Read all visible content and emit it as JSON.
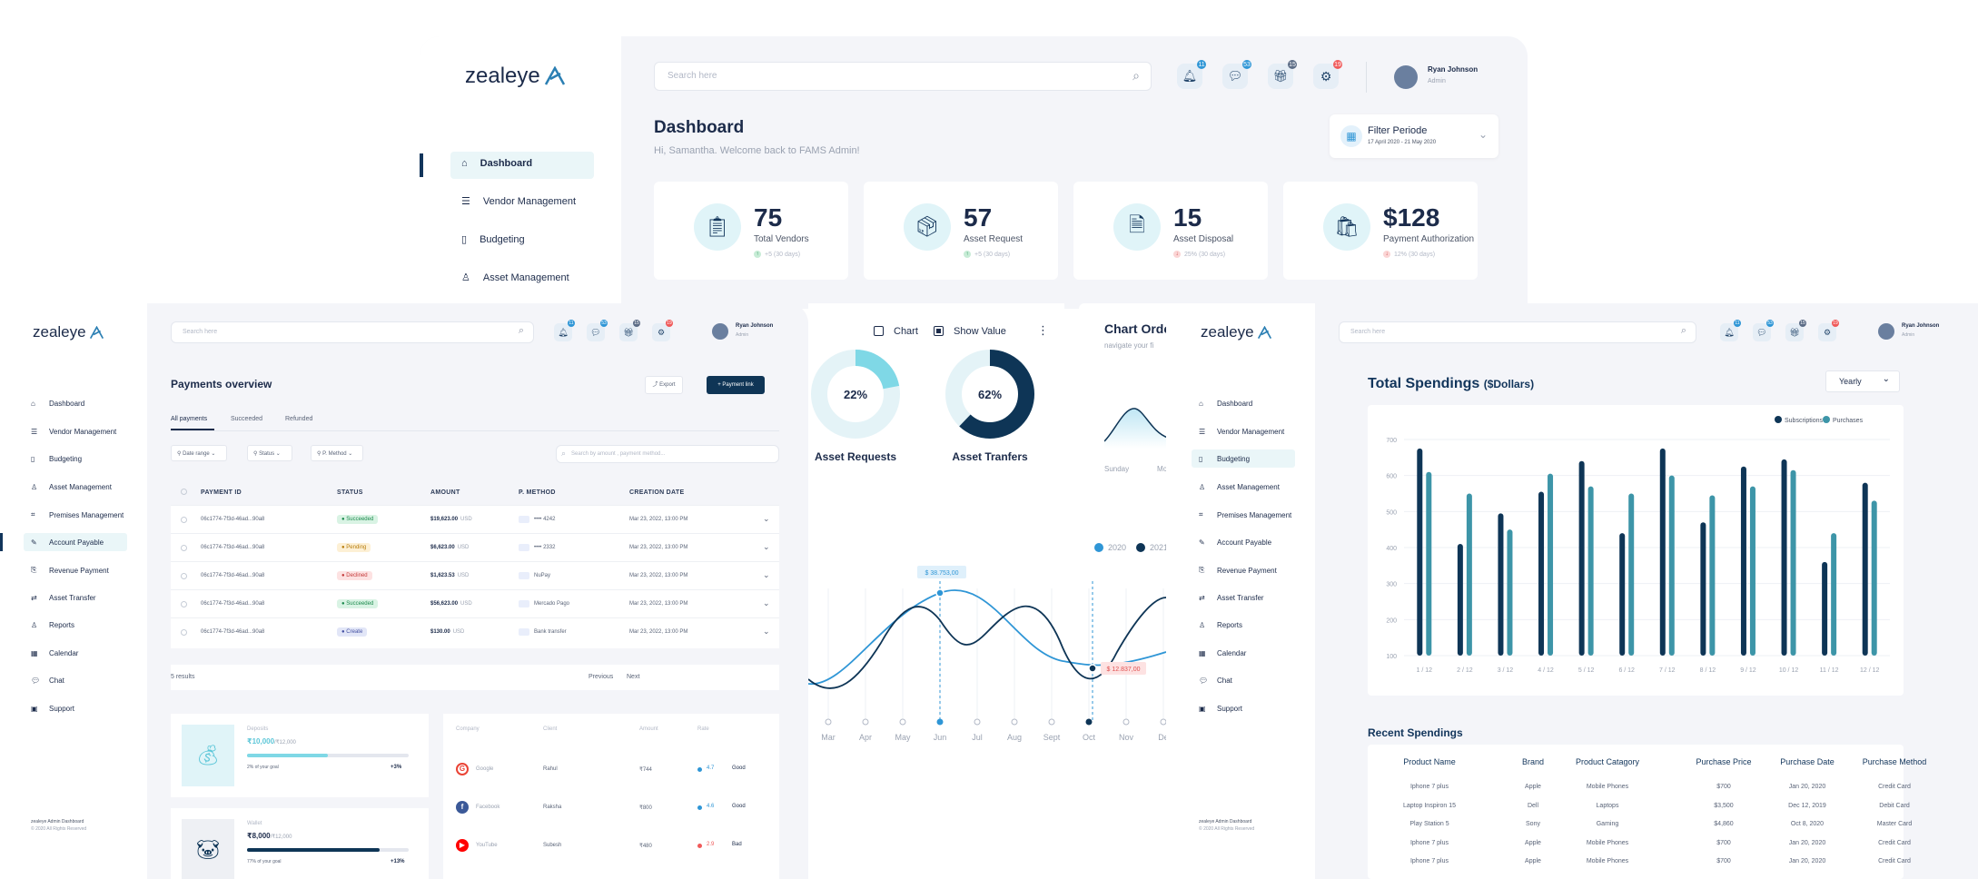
{
  "brand": "zealeye",
  "top": {
    "search_placeholder": "Search here",
    "badges": [
      "11",
      "53",
      "15",
      "19"
    ],
    "user": {
      "name": "Ryan Johnson",
      "role": "Admin"
    },
    "title": "Dashboard",
    "subtitle": "Hi, Samantha. Welcome back  to FAMS Admin!",
    "filter": {
      "label": "Filter Periode",
      "range": "17 April 2020 - 21 May 2020"
    },
    "nav": [
      "Dashboard",
      "Vendor Management",
      "Budgeting",
      "Asset Management"
    ],
    "stats": [
      {
        "value": "75",
        "label": "Total Vendors",
        "delta": "+5 (30 days)",
        "up": true
      },
      {
        "value": "57",
        "label": "Asset Request",
        "delta": "+5 (30 days)",
        "up": true
      },
      {
        "value": "15",
        "label": "Asset Disposal",
        "delta": "25% (30 days)",
        "up": false
      },
      {
        "value": "$128",
        "label": "Payment Authorization",
        "delta": "12% (30 days)",
        "up": false
      }
    ]
  },
  "donuts": {
    "chart_label": "Chart",
    "show_value_label": "Show Value",
    "items": [
      {
        "pct": 22,
        "text": "22%",
        "label": "Asset Requests",
        "color": "#7fd8e6"
      },
      {
        "pct": 62,
        "text": "62%",
        "label": "Asset Tranfers",
        "color": "#0e3556"
      }
    ]
  },
  "chart_order": {
    "title": "Chart Orde",
    "subtitle": "navigate your fi",
    "ticks": [
      "Sunday",
      "Mo"
    ]
  },
  "line_chart": {
    "legend": [
      "2020",
      "2021"
    ],
    "months": [
      "Mar",
      "Apr",
      "May",
      "Jun",
      "Jul",
      "Aug",
      "Sept",
      "Oct",
      "Nov",
      "De"
    ],
    "tooltip1": "$ 38.753,00",
    "tooltip2": "$ 12.837,00"
  },
  "payments": {
    "search_placeholder": "Search here",
    "badges": [
      "11",
      "53",
      "15",
      "19"
    ],
    "user": {
      "name": "Ryan Johnson",
      "role": "Admin"
    },
    "nav": [
      "Dashboard",
      "Vendor Management",
      "Budgeting",
      "Asset Management",
      "Premises Management",
      "Account Payable",
      "Revenue Payment",
      "Asset Transfer",
      "Reports",
      "Calendar",
      "Chat",
      "Support"
    ],
    "footer1": "zealeye Admin Dashboard",
    "footer2": "© 2020 All Rights Reserved",
    "title": "Payments overview",
    "export_label": "Export",
    "payment_link_label": "+ Payment link",
    "tabs": [
      "All payments",
      "Succeeded",
      "Refunded"
    ],
    "filters": [
      "Date range",
      "Status",
      "P. Method"
    ],
    "table_search": "Search by amount , payment method...",
    "headers": [
      "PAYMENT ID",
      "STATUS",
      "AMOUNT",
      "P. METHOD",
      "CREATION DATE"
    ],
    "rows": [
      {
        "id": "06c1774-7f3d-46ad...90a8",
        "status": "Succeeded",
        "amount": "$19,623.00",
        "cur": "USD",
        "method": "•••• 4242",
        "date": "Mar 23, 2022, 13:00 PM",
        "sbg": "#d9f3e4",
        "sfg": "#1b8a4c"
      },
      {
        "id": "06c1774-7f3d-46ad...90a8",
        "status": "Pending",
        "amount": "$6,623.00",
        "cur": "USD",
        "method": "•••• 2332",
        "date": "Mar 23, 2022, 13:00 PM",
        "sbg": "#fdf0d5",
        "sfg": "#b77d0d"
      },
      {
        "id": "06c1774-7f3d-46ad...90a8",
        "status": "Declined",
        "amount": "$1,623.53",
        "cur": "USD",
        "method": "NuPay",
        "date": "Mar 23, 2022, 13:00 PM",
        "sbg": "#fde2e2",
        "sfg": "#c43a3a"
      },
      {
        "id": "06c1774-7f3d-46ad...90a8",
        "status": "Succeeded",
        "amount": "$56,623.00",
        "cur": "USD",
        "method": "Mercado Pago",
        "date": "Mar 23, 2022, 13:00 PM",
        "sbg": "#d9f3e4",
        "sfg": "#1b8a4c"
      },
      {
        "id": "06c1774-7f3d-46ad...90a8",
        "status": "Create",
        "amount": "$130.00",
        "cur": "USD",
        "method": "Bank transfer",
        "date": "Mar 23, 2022, 13:00 PM",
        "sbg": "#e2e6f7",
        "sfg": "#4450a3"
      }
    ],
    "results": "5 results",
    "prev": "Previous",
    "next": "Next",
    "goals": [
      {
        "caption": "Deposits",
        "amount": "₹10,000",
        "total": "/₹12,000",
        "goal": "2% of your goal",
        "delta": "+3%",
        "fill": 0.5,
        "color": "#7fd8e6"
      },
      {
        "caption": "Wallet",
        "amount": "₹8,000",
        "total": "/₹12,000",
        "goal": "77% of your goal",
        "delta": "+13%",
        "fill": 0.82,
        "color": "#0e3556"
      }
    ],
    "company_headers": [
      "Company",
      "Client",
      "Amount",
      "Rate"
    ],
    "companies": [
      {
        "name": "Google",
        "client": "Rahul",
        "amount": "₹744",
        "rate": "4.7",
        "tag": "Good",
        "color": "#ea4335"
      },
      {
        "name": "Facebook",
        "client": "Raksha",
        "amount": "₹800",
        "rate": "4.6",
        "tag": "Good",
        "color": "#3b5998"
      },
      {
        "name": "YouTube",
        "client": "Subesh",
        "amount": "₹480",
        "rate": "2.9",
        "tag": "Bad",
        "color": "#ff0000"
      }
    ]
  },
  "spendings": {
    "search_placeholder": "Search here",
    "badges": [
      "11",
      "53",
      "15",
      "19"
    ],
    "user": {
      "name": "Ryan Johnson",
      "role": "Admin"
    },
    "nav": [
      "Dashboard",
      "Vendor Management",
      "Budgeting",
      "Asset Management",
      "Premises Management",
      "Account Payable",
      "Revenue Payment",
      "Asset Transfer",
      "Reports",
      "Calendar",
      "Chat",
      "Support"
    ],
    "footer1": "zealeye Admin Dashboard",
    "footer2": "© 2020 All Rights Reserved",
    "title": "Total Spendings",
    "title_unit": "($Dollars)",
    "period": "Yearly",
    "recent_title": "Recent Spendings",
    "recent_headers": [
      "Product Name",
      "Brand",
      "Product Catagory",
      "Purchase Price",
      "Purchase Date",
      "Purchase Method"
    ],
    "recent_rows": [
      [
        "Iphone 7 plus",
        "Apple",
        "Mobile Phones",
        "$700",
        "Jan 20, 2020",
        "Credit Card"
      ],
      [
        "Laptop Inspiron 15",
        "Dell",
        "Laptops",
        "$3,500",
        "Dec 12, 2019",
        "Debit Card"
      ],
      [
        "Play Station 5",
        "Sony",
        "Gaming",
        "$4,860",
        "Oct 8, 2020",
        "Master Card"
      ],
      [
        "Iphone 7 plus",
        "Apple",
        "Mobile Phones",
        "$700",
        "Jan 20, 2020",
        "Credit Card"
      ],
      [
        "Iphone 7 plus",
        "Apple",
        "Mobile Phones",
        "$700",
        "Jan 20, 2020",
        "Credit Card"
      ]
    ]
  },
  "chart_data": {
    "type": "bar",
    "categories": [
      "1 / 12",
      "2 / 12",
      "3 / 12",
      "4 / 12",
      "5 / 12",
      "6 / 12",
      "7 / 12",
      "8 / 12",
      "9 / 12",
      "10 / 12",
      "11 / 12",
      "12 / 12"
    ],
    "series": [
      {
        "name": "Subscriptions",
        "values": [
          675,
          410,
          495,
          555,
          640,
          440,
          675,
          470,
          625,
          645,
          360,
          580
        ],
        "color": "#0e3556"
      },
      {
        "name": "Purchases",
        "values": [
          610,
          550,
          450,
          605,
          570,
          550,
          600,
          545,
          570,
          615,
          440,
          530
        ],
        "color": "#3d95a8"
      }
    ],
    "ylim": [
      100,
      700
    ],
    "yticks": [
      "100",
      "200",
      "300",
      "400",
      "500",
      "600",
      "700"
    ],
    "grid": true,
    "legend": "top-right"
  }
}
